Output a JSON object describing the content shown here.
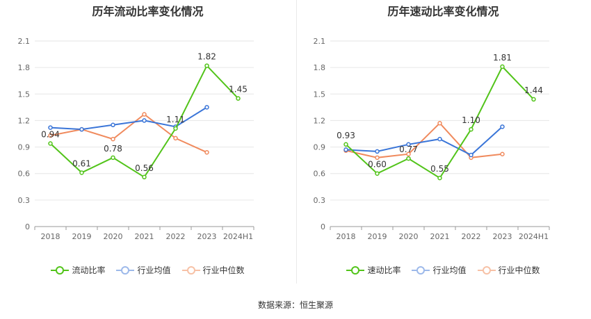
{
  "colors": {
    "main": "#52c41a",
    "avg": "#3a75d8",
    "median": "#f08a5d",
    "avg_legend": "#9db9ea",
    "median_legend": "#f7c1a6"
  },
  "source": "数据来源：恒生聚源",
  "chart_data": [
    {
      "type": "line",
      "title": "历年流动比率变化情况",
      "categories": [
        "2018",
        "2019",
        "2020",
        "2021",
        "2022",
        "2023",
        "2024H1"
      ],
      "y_ticks": [
        "0",
        "0.3",
        "0.6",
        "0.9",
        "1.2",
        "1.5",
        "1.8",
        "2.1"
      ],
      "ylim": [
        0,
        2.1
      ],
      "grid": true,
      "legend_position": "bottom",
      "series": [
        {
          "name": "流动比率",
          "key": "main",
          "values": [
            0.94,
            0.61,
            0.78,
            0.56,
            1.11,
            1.82,
            1.45
          ],
          "labels": [
            "0.94",
            "0.61",
            "0.78",
            "0.56",
            "1.11",
            "1.82",
            "1.45"
          ]
        },
        {
          "name": "行业均值",
          "key": "avg",
          "values": [
            1.12,
            1.1,
            1.15,
            1.2,
            1.13,
            1.35,
            null
          ]
        },
        {
          "name": "行业中位数",
          "key": "median",
          "values": [
            1.03,
            1.1,
            0.99,
            1.27,
            1.0,
            0.84,
            null
          ]
        }
      ]
    },
    {
      "type": "line",
      "title": "历年速动比率变化情况",
      "categories": [
        "2018",
        "2019",
        "2020",
        "2021",
        "2022",
        "2023",
        "2024H1"
      ],
      "y_ticks": [
        "0",
        "0.3",
        "0.6",
        "0.9",
        "1.2",
        "1.5",
        "1.8",
        "2.1"
      ],
      "ylim": [
        0,
        2.1
      ],
      "grid": true,
      "legend_position": "bottom",
      "series": [
        {
          "name": "速动比率",
          "key": "main",
          "values": [
            0.93,
            0.6,
            0.77,
            0.55,
            1.1,
            1.81,
            1.44
          ],
          "labels": [
            "0.93",
            "0.60",
            "0.77",
            "0.55",
            "1.10",
            "1.81",
            "1.44"
          ]
        },
        {
          "name": "行业均值",
          "key": "avg",
          "values": [
            0.87,
            0.85,
            0.93,
            0.99,
            0.81,
            1.13,
            null
          ]
        },
        {
          "name": "行业中位数",
          "key": "median",
          "values": [
            0.86,
            0.78,
            0.82,
            1.17,
            0.78,
            0.82,
            null
          ]
        }
      ]
    }
  ]
}
